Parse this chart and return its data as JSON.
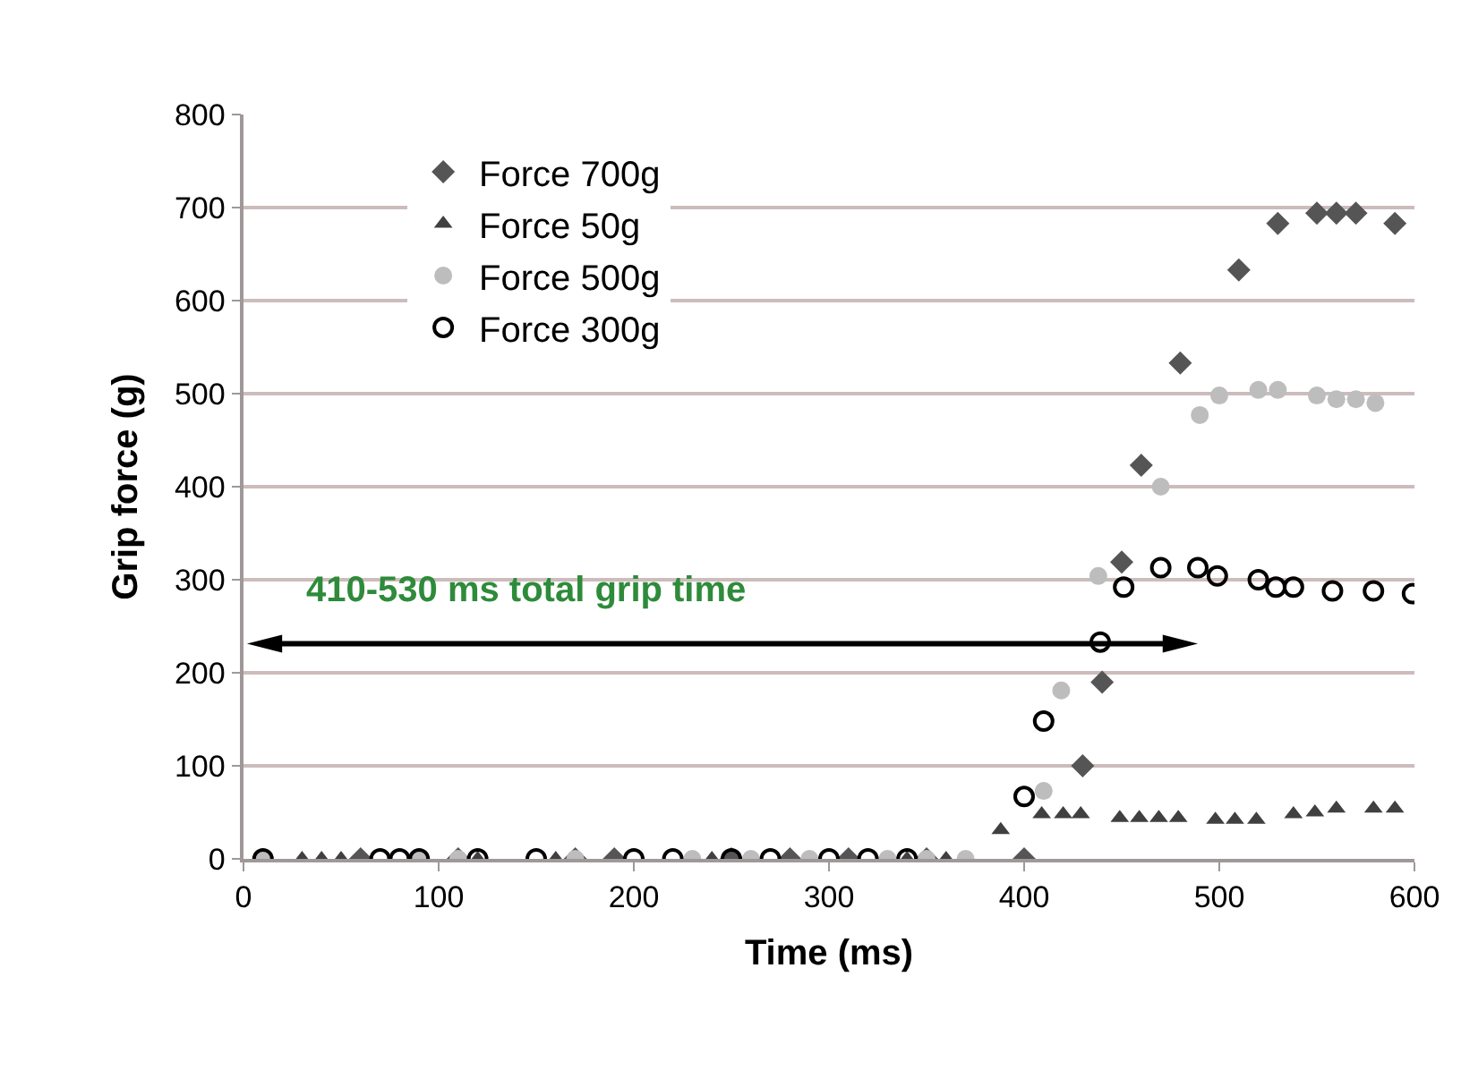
{
  "chart_data": {
    "type": "scatter",
    "xlabel": "Time (ms)",
    "ylabel": "Grip force (g)",
    "xlim": [
      0,
      600
    ],
    "xticks": [
      0,
      100,
      200,
      300,
      400,
      500,
      600
    ],
    "ylim": [
      0,
      800
    ],
    "yticks": [
      0,
      100,
      200,
      300,
      400,
      500,
      600,
      700,
      800
    ],
    "grid": "y",
    "legend": "top left",
    "annotations": [
      "410-530 ms total grip time"
    ],
    "series": [
      {
        "name": "Force 700g",
        "color": "#555555",
        "marker": "diamond",
        "x": [
          60,
          110,
          170,
          190,
          250,
          280,
          310,
          350,
          400,
          430,
          440,
          450,
          460,
          480,
          510,
          530,
          550,
          560,
          570,
          590
        ],
        "values": [
          0,
          0,
          0,
          0,
          0,
          0,
          0,
          0,
          0,
          100,
          190,
          319,
          423,
          533,
          633,
          683,
          694,
          694,
          694,
          683
        ]
      },
      {
        "name": "Force 50g",
        "color": "#404040",
        "marker": "triangle",
        "x": [
          30,
          40,
          50,
          120,
          160,
          240,
          340,
          360,
          388,
          409,
          420,
          429,
          449,
          459,
          469,
          479,
          498,
          508,
          519,
          538,
          549,
          560,
          579,
          590
        ],
        "values": [
          0,
          0,
          0,
          0,
          0,
          0,
          0,
          0,
          31,
          48,
          48,
          48,
          44,
          44,
          44,
          44,
          42,
          42,
          42,
          48,
          50,
          54,
          54,
          54
        ]
      },
      {
        "name": "Force 500g",
        "color": "#bdbdbd",
        "marker": "circle",
        "x": [
          10,
          90,
          110,
          170,
          230,
          260,
          290,
          330,
          350,
          370,
          410,
          419,
          438,
          470,
          490,
          500,
          520,
          530,
          550,
          560,
          570,
          580
        ],
        "values": [
          0,
          0,
          0,
          0,
          0,
          0,
          0,
          0,
          0,
          0,
          73,
          181,
          304,
          400,
          477,
          498,
          504,
          504,
          498,
          494,
          494,
          490
        ]
      },
      {
        "name": "Force 300g",
        "color": "#000000",
        "marker": "circle-open",
        "x": [
          10,
          70,
          80,
          90,
          120,
          150,
          200,
          220,
          250,
          270,
          300,
          320,
          340,
          400,
          410,
          439,
          451,
          470,
          489,
          499,
          520,
          529,
          538,
          558,
          579,
          599
        ],
        "values": [
          0,
          0,
          0,
          0,
          0,
          0,
          0,
          0,
          0,
          0,
          0,
          0,
          0,
          67,
          148,
          233,
          292,
          313,
          313,
          304,
          300,
          292,
          292,
          288,
          288,
          285
        ]
      }
    ]
  }
}
